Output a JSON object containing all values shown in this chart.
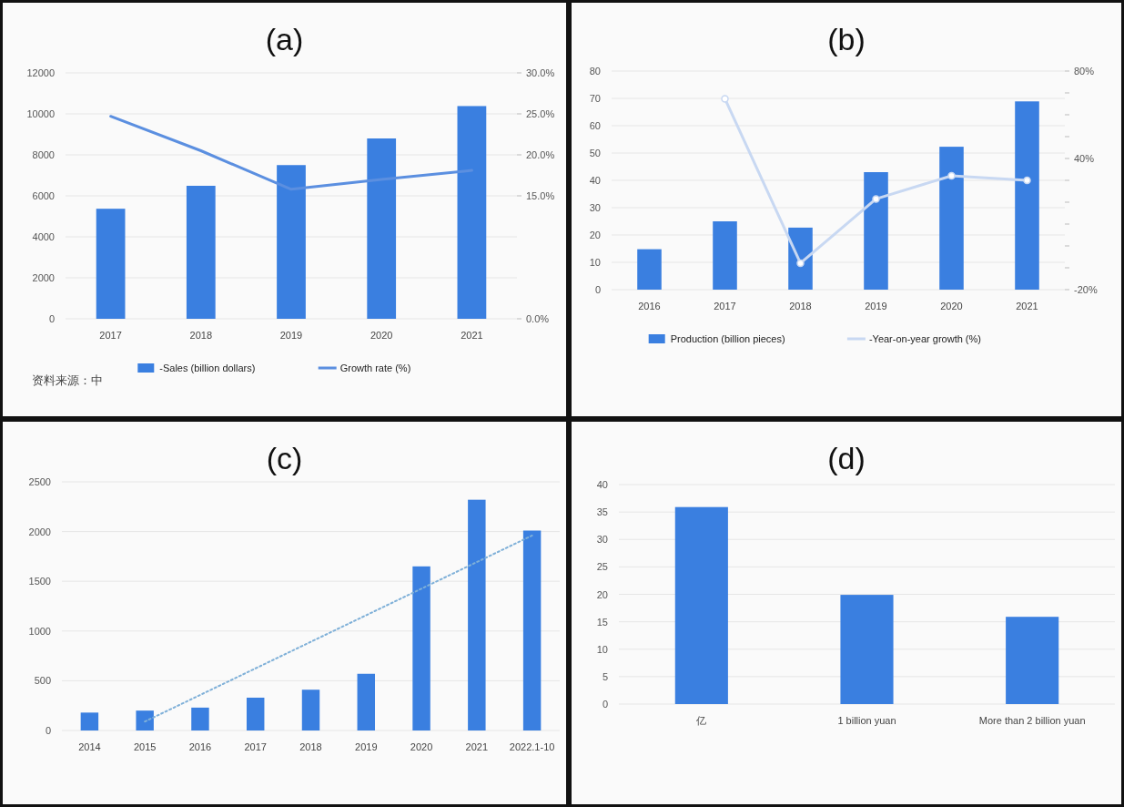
{
  "chart_data": [
    {
      "type": "bar",
      "title": "(a)",
      "categories": [
        "2017",
        "2018",
        "2019",
        "2020",
        "2021"
      ],
      "series": [
        {
          "name": "-Sales (billion dollars)",
          "color": "#3a7fe0",
          "values": [
            5370,
            6490,
            7500,
            8800,
            10380
          ]
        },
        {
          "name": "Growth rate (%)",
          "type": "line",
          "axis": "y2",
          "color": "#5b8fe0",
          "values": [
            24.7,
            20.5,
            15.8,
            17.0,
            18.1
          ]
        }
      ],
      "ylim": [
        0,
        12000
      ],
      "yticks": [
        0,
        2000,
        4000,
        6000,
        8000,
        10000,
        12000
      ],
      "y2lim": [
        0,
        30
      ],
      "y2ticks": [
        {
          "value": 0,
          "label": "0.0%"
        },
        {
          "value": 15,
          "label": "15.0%"
        },
        {
          "value": 20,
          "label": "20.0%"
        },
        {
          "value": 25,
          "label": "25.0%"
        },
        {
          "value": 30,
          "label": "30.0%"
        }
      ],
      "grid": "y",
      "legend": "bottom",
      "annotations": [
        "资料来源：中"
      ]
    },
    {
      "type": "bar",
      "title": "(b)",
      "categories": [
        "2016",
        "2017",
        "2018",
        "2019",
        "2020",
        "2021"
      ],
      "series": [
        {
          "name": "Production (billion pieces)",
          "color": "#3a7fe0",
          "values": [
            14.8,
            25.0,
            22.7,
            43.0,
            52.3,
            68.9
          ]
        },
        {
          "name": "-Year-on-year growth (%)",
          "type": "line",
          "axis": "y2",
          "color": "#c8d8f2",
          "values": [
            null,
            67.3,
            -7.9,
            21.5,
            32.1,
            30.0
          ]
        }
      ],
      "ylim": [
        0,
        80
      ],
      "yticks": [
        0,
        10,
        20,
        30,
        40,
        50,
        60,
        70,
        80
      ],
      "y2lim": [
        -20,
        80
      ],
      "y2ticks": [
        {
          "value": -20,
          "label": "-20%"
        },
        {
          "value": -10,
          "label": null
        },
        {
          "value": 0,
          "label": null
        },
        {
          "value": 10,
          "label": null
        },
        {
          "value": 20,
          "label": null
        },
        {
          "value": 30,
          "label": null
        },
        {
          "value": 40,
          "label": "40%"
        },
        {
          "value": 50,
          "label": null
        },
        {
          "value": 60,
          "label": null
        },
        {
          "value": 70,
          "label": null
        },
        {
          "value": 80,
          "label": "80%"
        }
      ],
      "grid": "y",
      "legend": "bottom",
      "marker": "circle"
    },
    {
      "type": "bar",
      "title": "(c)",
      "categories": [
        "2014",
        "2015",
        "2016",
        "2017",
        "2018",
        "2019",
        "2020",
        "2021",
        "2022.1-10"
      ],
      "series": [
        {
          "color": "#3a7fe0",
          "values": [
            180,
            200,
            230,
            330,
            410,
            570,
            1650,
            2320,
            2010
          ]
        },
        {
          "type": "line",
          "color": "#7fb0d8",
          "line_style": "dotted",
          "values": [
            null,
            90,
            null,
            null,
            null,
            null,
            null,
            null,
            1960
          ]
        }
      ],
      "ylim": [
        0,
        2500
      ],
      "yticks": [
        0,
        500,
        1000,
        1500,
        2000,
        2500
      ],
      "grid": "y"
    },
    {
      "type": "bar",
      "title": "(d)",
      "categories": [
        "亿",
        "1 billion yuan",
        "More than 2 billion yuan"
      ],
      "series": [
        {
          "color": "#3a7fe0",
          "values": [
            35.9,
            19.9,
            15.9
          ]
        }
      ],
      "ylim": [
        0,
        40
      ],
      "yticks": [
        0,
        5,
        10,
        15,
        20,
        25,
        30,
        35,
        40
      ],
      "grid": "y"
    }
  ]
}
